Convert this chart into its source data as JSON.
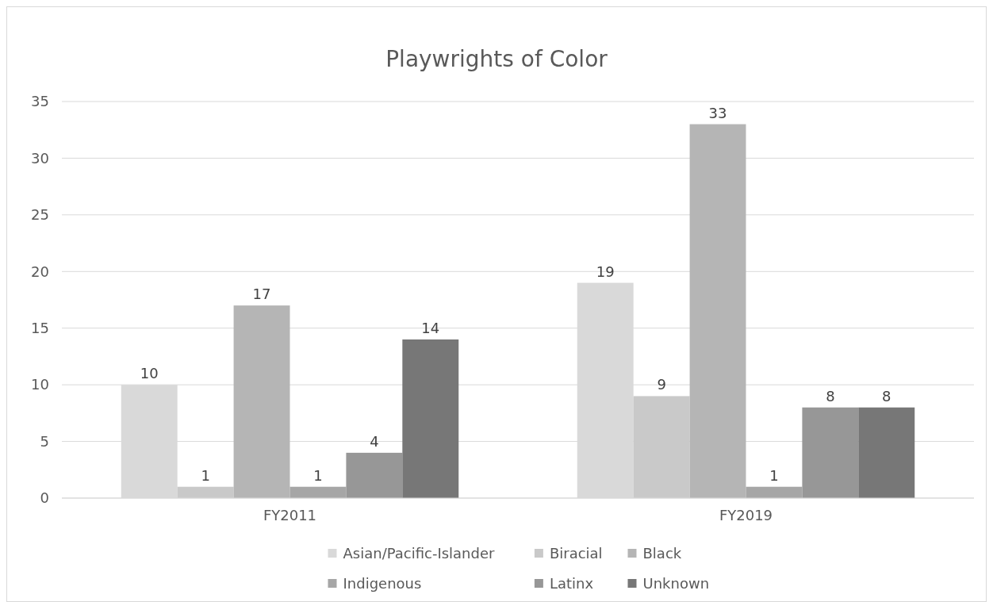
{
  "chart_data": {
    "type": "bar",
    "title": "Playwrights of Color",
    "categories": [
      "FY2011",
      "FY2019"
    ],
    "series": [
      {
        "name": "Asian/Pacific-Islander",
        "color": "#d9d9d9",
        "values": [
          10,
          19
        ]
      },
      {
        "name": "Biracial",
        "color": "#c9c9c9",
        "values": [
          1,
          9
        ]
      },
      {
        "name": "Black",
        "color": "#b5b5b5",
        "values": [
          17,
          33
        ]
      },
      {
        "name": "Indigenous",
        "color": "#a6a6a6",
        "values": [
          1,
          1
        ]
      },
      {
        "name": "Latinx",
        "color": "#979797",
        "values": [
          4,
          8
        ]
      },
      {
        "name": "Unknown",
        "color": "#777777",
        "values": [
          14,
          8
        ]
      }
    ],
    "ylim": [
      0,
      35
    ],
    "yticks": [
      0,
      5,
      10,
      15,
      20,
      25,
      30,
      35
    ],
    "grid": "y",
    "legend": "bottom",
    "data_labels": true
  }
}
